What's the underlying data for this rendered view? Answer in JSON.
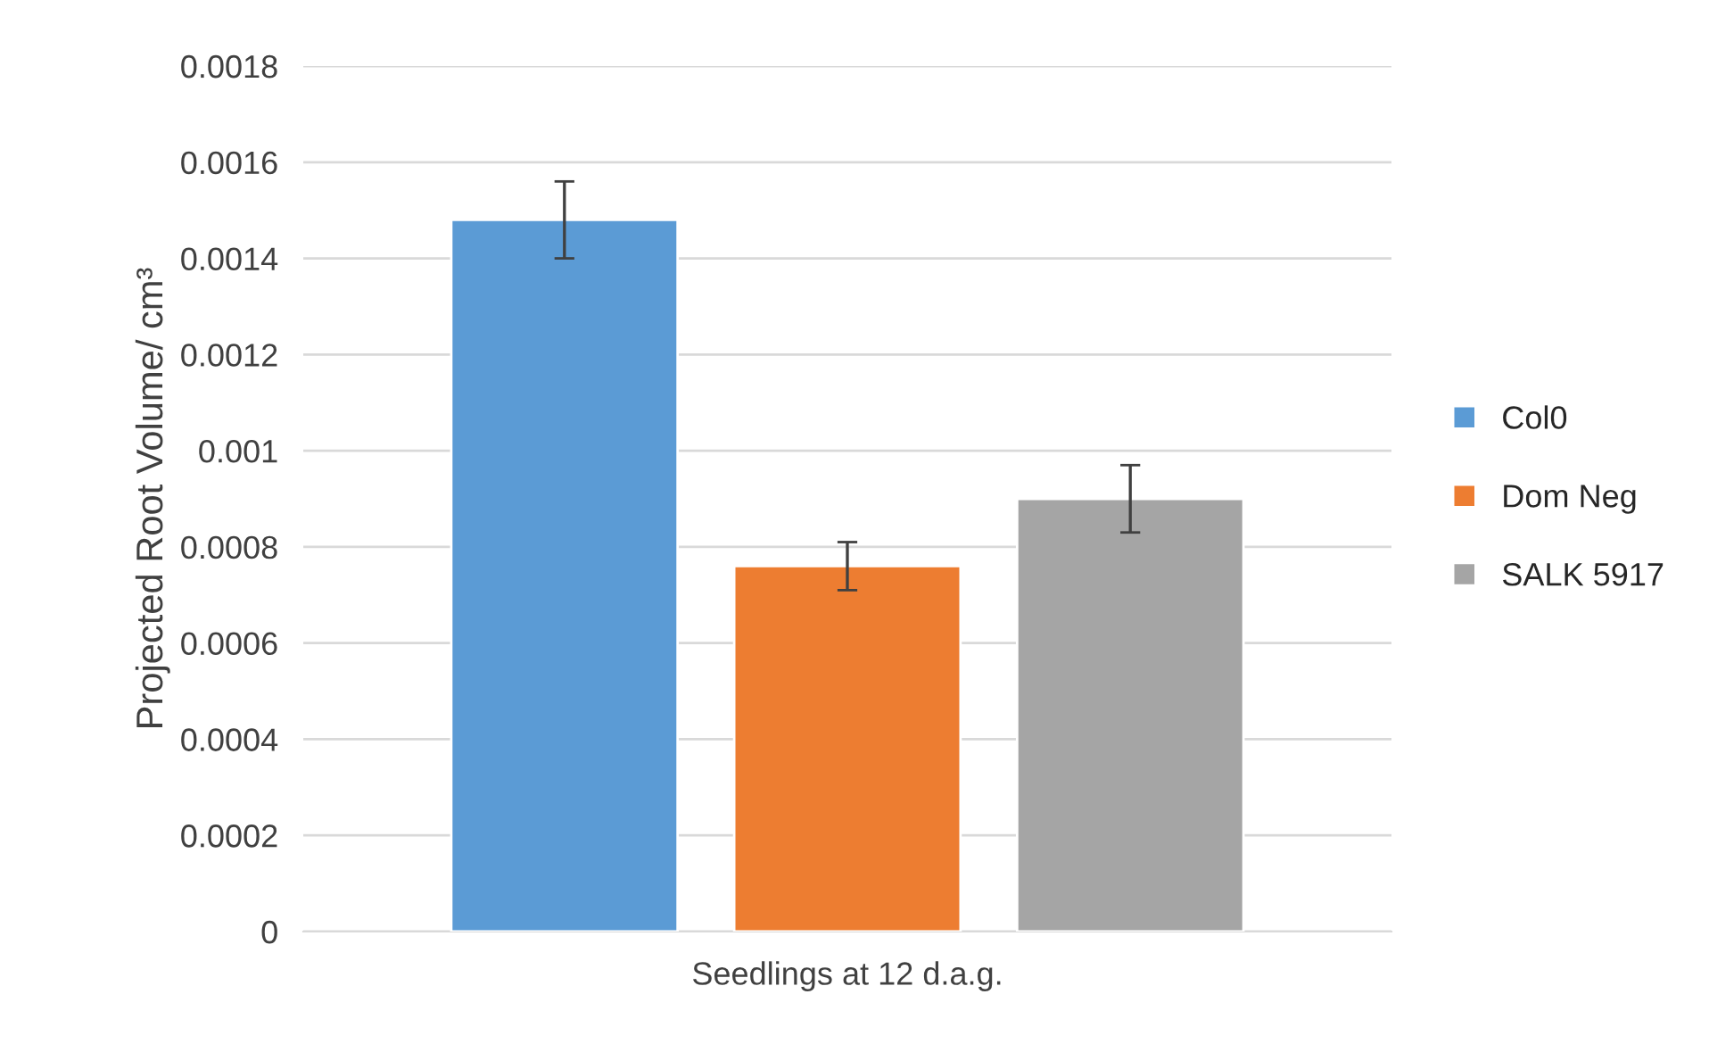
{
  "chart_data": {
    "type": "bar",
    "categories": [
      "Seedlings at 12 d.a.g."
    ],
    "ylabel": "Projected Root Volume/ cm³",
    "series": [
      {
        "name": "Col0",
        "color": "#5b9bd5",
        "values": [
          0.00148
        ],
        "errors": [
          8e-05
        ]
      },
      {
        "name": "Dom Neg",
        "color": "#ed7d31",
        "values": [
          0.00076
        ],
        "errors": [
          5e-05
        ]
      },
      {
        "name": "SALK 5917",
        "color": "#a5a5a5",
        "values": [
          0.0009
        ],
        "errors": [
          7e-05
        ]
      }
    ],
    "ylim": [
      0,
      0.0018
    ],
    "yticks": [
      0,
      0.0002,
      0.0004,
      0.0006,
      0.0008,
      0.001,
      0.0012,
      0.0014,
      0.0016,
      0.0018
    ],
    "grid": "y",
    "legend": "right"
  }
}
